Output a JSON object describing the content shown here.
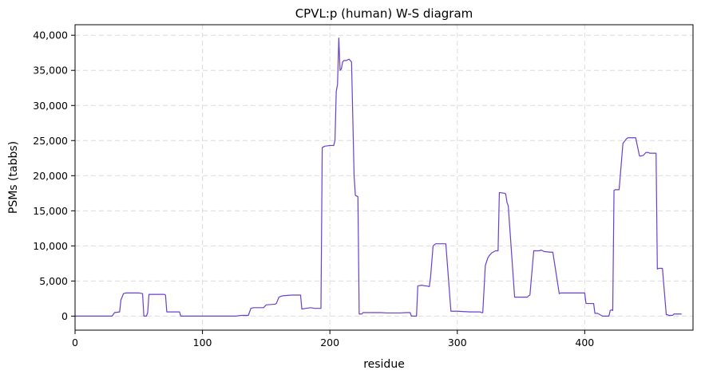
{
  "chart_data": {
    "type": "line",
    "title": "CPVL:p (human) W-S diagram",
    "xlabel": "residue",
    "ylabel": "PSMs (tabbs)",
    "xlim": [
      0,
      485
    ],
    "ylim": [
      -2000,
      41500
    ],
    "grid": true,
    "x_ticks": [
      0,
      100,
      200,
      300,
      400
    ],
    "y_ticks": [
      0,
      5000,
      10000,
      15000,
      20000,
      25000,
      30000,
      35000,
      40000
    ],
    "x_tick_labels": [
      "0",
      "100",
      "200",
      "300",
      "400"
    ],
    "y_tick_labels": [
      "0",
      "5,000",
      "10,000",
      "15,000",
      "20,000",
      "25,000",
      "30,000",
      "35,000",
      "40,000"
    ],
    "series": [
      {
        "color": "#6a3fd0",
        "x": [
          0,
          28,
          29,
          31,
          35,
          36,
          38,
          40,
          45,
          50,
          53,
          54,
          56,
          57,
          58,
          65,
          70,
          71,
          72,
          80,
          82,
          83,
          90,
          100,
          110,
          120,
          126,
          128,
          131,
          136,
          138,
          140,
          148,
          150,
          157,
          158,
          160,
          163,
          170,
          176,
          177,
          178,
          181,
          185,
          188,
          189,
          193,
          194,
          196,
          200,
          203,
          204,
          205,
          206,
          207,
          208,
          209,
          210,
          211,
          213,
          215,
          217,
          219,
          220,
          222,
          223,
          225,
          226,
          228,
          230,
          235,
          240,
          245,
          250,
          255,
          260,
          263,
          264,
          267,
          268,
          269,
          272,
          275,
          276,
          278,
          279,
          281,
          283,
          290,
          291,
          295,
          300,
          310,
          316,
          317,
          318,
          319,
          320,
          322,
          324,
          325,
          327,
          330,
          332,
          333,
          337,
          338,
          339,
          340,
          345,
          350,
          353,
          355,
          356,
          357,
          360,
          364,
          366,
          367,
          368,
          373,
          374,
          375,
          380,
          381,
          382,
          385,
          390,
          400,
          401,
          402,
          405,
          407,
          408,
          410,
          414,
          415,
          419,
          420,
          421,
          422,
          423,
          424,
          425,
          427,
          430,
          433,
          434,
          436,
          437,
          440,
          443,
          444,
          446,
          448,
          450,
          451,
          456,
          457,
          458,
          459,
          461,
          464,
          465,
          466,
          469,
          470,
          472,
          475,
          476
        ],
        "y": [
          0,
          0,
          0,
          500,
          600,
          2300,
          3200,
          3300,
          3300,
          3300,
          3200,
          0,
          0,
          500,
          3100,
          3100,
          3100,
          3000,
          600,
          600,
          600,
          0,
          0,
          0,
          0,
          0,
          0,
          50,
          100,
          100,
          1100,
          1200,
          1200,
          1600,
          1700,
          1800,
          2700,
          2900,
          3000,
          3000,
          3000,
          1000,
          1100,
          1200,
          1100,
          1100,
          1100,
          24000,
          24200,
          24300,
          24300,
          25000,
          32000,
          33000,
          39600,
          35000,
          35200,
          36200,
          36400,
          36400,
          36600,
          36200,
          20000,
          17200,
          17000,
          300,
          300,
          500,
          500,
          500,
          500,
          500,
          450,
          450,
          450,
          500,
          500,
          0,
          0,
          0,
          4300,
          4400,
          4300,
          4300,
          4200,
          5500,
          10000,
          10300,
          10300,
          10300,
          700,
          700,
          600,
          600,
          600,
          600,
          500,
          500,
          7200,
          8300,
          8600,
          9000,
          9300,
          9300,
          17600,
          17500,
          17400,
          16200,
          15700,
          2700,
          2700,
          2700,
          2700,
          2900,
          3000,
          9300,
          9300,
          9400,
          9300,
          9200,
          9100,
          9100,
          9100,
          3200,
          3300,
          3300,
          3300,
          3300,
          3300,
          1800,
          1800,
          1800,
          1800,
          400,
          400,
          0,
          0,
          0,
          800,
          900,
          800,
          17900,
          18000,
          18000,
          18000,
          24600,
          25300,
          25400,
          25400,
          25400,
          25400,
          22800,
          22800,
          22900,
          23300,
          23300,
          23200,
          23200,
          6700,
          6800,
          6800,
          6800,
          200,
          200,
          100,
          100,
          300,
          300,
          300,
          300
        ]
      }
    ]
  }
}
